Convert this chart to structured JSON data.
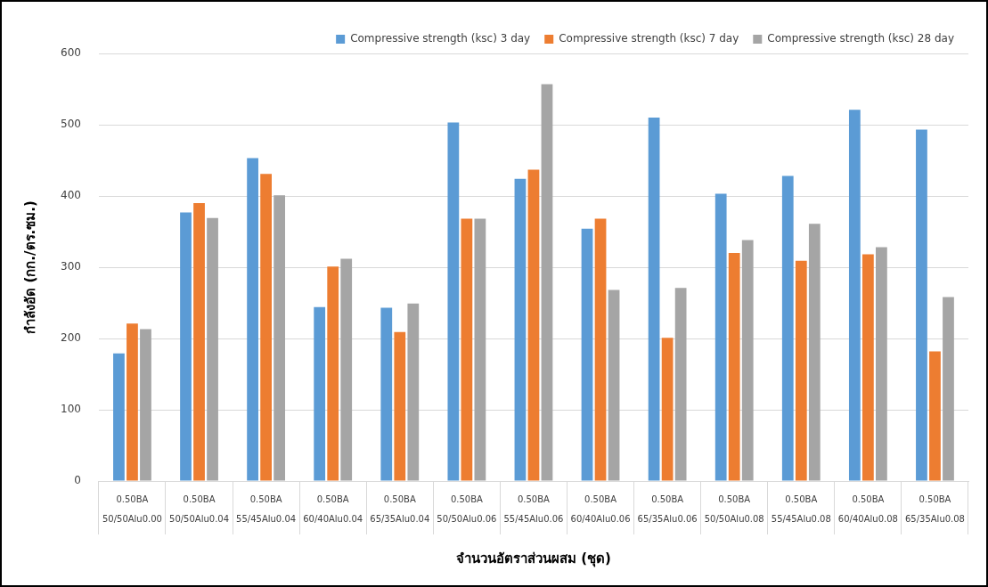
{
  "chart_data": {
    "type": "bar",
    "xlabel": "จำนวนอัตราส่วนผสม (ชุด)",
    "ylabel": "กำลังอัด (กก./ตร.ซม.)",
    "categories": [
      "0.50BA\n50/50Alu0.00",
      "0.50BA\n50/50Alu0.04",
      "0.50BA\n55/45Alu0.04",
      "0.50BA\n60/40Alu0.04",
      "0.50BA\n65/35Alu0.04",
      "0.50BA\n50/50Alu0.06",
      "0.50BA\n55/45Alu0.06",
      "0.50BA\n60/40Alu0.06",
      "0.50BA\n65/35Alu0.06",
      "0.50BA\n50/50Alu0.08",
      "0.50BA\n55/45Alu0.08",
      "0.50BA\n60/40Alu0.08",
      "0.50BA\n65/35Alu0.08"
    ],
    "series": [
      {
        "name": "Compressive strength (ksc) 3 day",
        "color": "#5b9bd5",
        "values": [
          179,
          377,
          453,
          244,
          243,
          503,
          424,
          354,
          510,
          403,
          428,
          521,
          493
        ]
      },
      {
        "name": "Compressive strength (ksc) 7 day",
        "color": "#ed7d31",
        "values": [
          221,
          390,
          431,
          301,
          209,
          368,
          437,
          368,
          201,
          320,
          309,
          318,
          182
        ]
      },
      {
        "name": "Compressive strength (ksc) 28 day",
        "color": "#a5a5a5",
        "values": [
          213,
          369,
          401,
          312,
          249,
          368,
          557,
          268,
          271,
          338,
          361,
          328,
          258
        ]
      }
    ],
    "ylim": [
      0,
      600
    ],
    "yticks": [
      0,
      100,
      200,
      300,
      400,
      500,
      600
    ],
    "grid": "y",
    "legend": "top right"
  }
}
